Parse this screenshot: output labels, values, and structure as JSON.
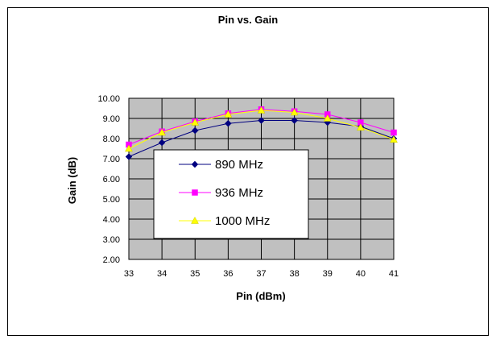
{
  "chart_data": {
    "type": "line",
    "title": "Pin vs. Gain",
    "xlabel": "Pin (dBm)",
    "ylabel": "Gain (dB)",
    "x": [
      33,
      34,
      35,
      36,
      37,
      38,
      39,
      40,
      41
    ],
    "xlim": [
      33,
      41
    ],
    "ylim": [
      2,
      10
    ],
    "x_ticks": [
      "33",
      "34",
      "35",
      "36",
      "37",
      "38",
      "39",
      "40",
      "41"
    ],
    "y_ticks": [
      "2.00",
      "3.00",
      "4.00",
      "5.00",
      "6.00",
      "7.00",
      "8.00",
      "9.00",
      "10.00"
    ],
    "grid": true,
    "plot_background": "#c0c0c0",
    "legend_position": "center-left",
    "series": [
      {
        "name": "890 MHz",
        "color": "#000080",
        "marker": "diamond",
        "values": [
          7.1,
          7.8,
          8.4,
          8.75,
          8.9,
          8.9,
          8.8,
          8.6,
          8.0
        ]
      },
      {
        "name": "936 MHz",
        "color": "#ff00ff",
        "marker": "square",
        "values": [
          7.7,
          8.35,
          8.85,
          9.25,
          9.45,
          9.35,
          9.2,
          8.8,
          8.3
        ]
      },
      {
        "name": "1000 MHz",
        "color": "#ffff00",
        "marker": "triangle",
        "values": [
          7.5,
          8.3,
          8.8,
          9.2,
          9.4,
          9.3,
          9.0,
          8.55,
          7.95
        ]
      }
    ]
  }
}
